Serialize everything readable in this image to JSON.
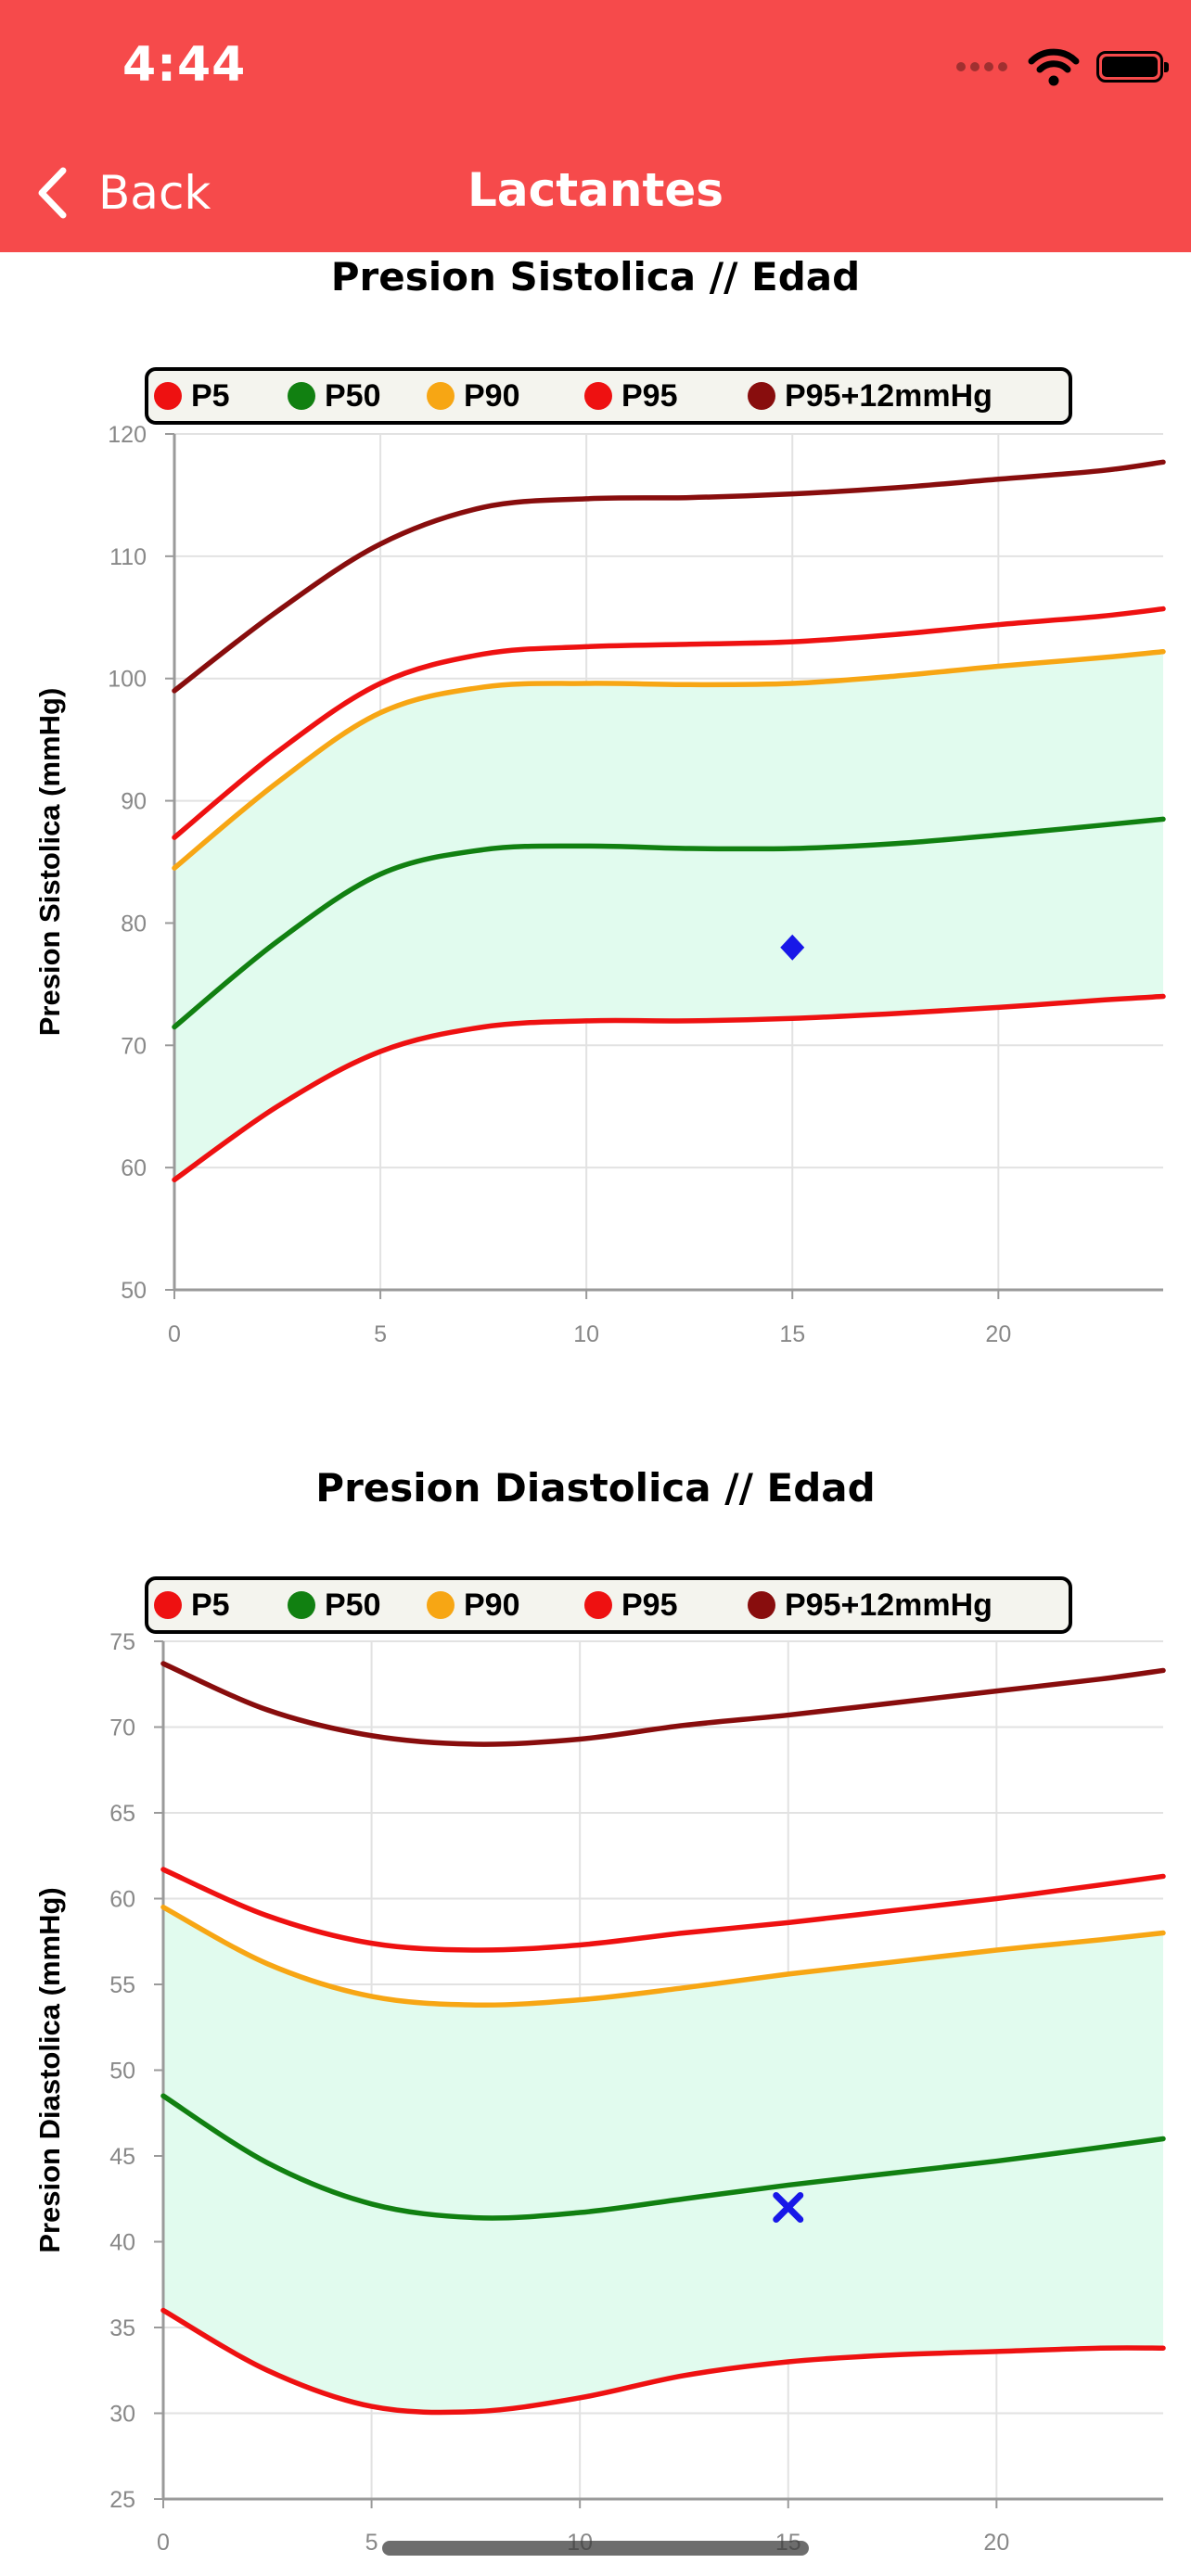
{
  "status_bar": {
    "time": "4:44"
  },
  "nav": {
    "back_label": "Back",
    "title": "Lactantes"
  },
  "legend": [
    {
      "label": "P5",
      "color": "#ee1111"
    },
    {
      "label": "P50",
      "color": "#118011"
    },
    {
      "label": "P90",
      "color": "#f7a614"
    },
    {
      "label": "P95",
      "color": "#ee1111"
    },
    {
      "label": "P95+12mmHg",
      "color": "#880d0d"
    }
  ],
  "chart_data": [
    {
      "type": "line",
      "title": "Presion Sistolica // Edad",
      "ylabel": "Presion Sistolica (mmHg)",
      "xlabel": "",
      "xlim": [
        0,
        24
      ],
      "ylim": [
        50,
        120
      ],
      "x_ticks": [
        0,
        5,
        10,
        15,
        20
      ],
      "y_ticks": [
        50,
        60,
        70,
        80,
        90,
        100,
        110,
        120
      ],
      "grid": true,
      "legend_position": "top",
      "band": {
        "between": [
          "P5",
          "P90"
        ],
        "color": "#e1fbee"
      },
      "series": [
        {
          "name": "P5",
          "color": "#ee1111",
          "x": [
            0,
            2.5,
            5,
            7.5,
            10,
            12.5,
            15,
            17.5,
            20,
            22.5,
            24
          ],
          "y": [
            59,
            65,
            69.5,
            71.5,
            72,
            72,
            72.2,
            72.6,
            73.1,
            73.7,
            74
          ]
        },
        {
          "name": "P50",
          "color": "#118011",
          "x": [
            0,
            2.5,
            5,
            7.5,
            10,
            12.5,
            15,
            17.5,
            20,
            22.5,
            24
          ],
          "y": [
            71.5,
            78.5,
            84,
            86,
            86.3,
            86.1,
            86.1,
            86.5,
            87.2,
            88,
            88.5
          ]
        },
        {
          "name": "P90",
          "color": "#f7a614",
          "x": [
            0,
            2.5,
            5,
            7.5,
            10,
            12.5,
            15,
            17.5,
            20,
            22.5,
            24
          ],
          "y": [
            84.5,
            91.5,
            97.2,
            99.3,
            99.6,
            99.5,
            99.6,
            100.2,
            101,
            101.7,
            102.2
          ]
        },
        {
          "name": "P95",
          "color": "#ee1111",
          "x": [
            0,
            2.5,
            5,
            7.5,
            10,
            12.5,
            15,
            17.5,
            20,
            22.5,
            24
          ],
          "y": [
            87,
            94,
            99.6,
            102,
            102.6,
            102.8,
            103,
            103.6,
            104.4,
            105.1,
            105.7
          ]
        },
        {
          "name": "P95+12mmHg",
          "color": "#880d0d",
          "x": [
            0,
            2.5,
            5,
            7.5,
            10,
            12.5,
            15,
            17.5,
            20,
            22.5,
            24
          ],
          "y": [
            99,
            105.5,
            111,
            114,
            114.7,
            114.8,
            115.1,
            115.6,
            116.3,
            117,
            117.7
          ]
        }
      ],
      "points": [
        {
          "x": 15,
          "y": 78,
          "marker": "diamond",
          "color": "#1818e8"
        }
      ]
    },
    {
      "type": "line",
      "title": "Presion Diastolica // Edad",
      "ylabel": "Presion Diastolica (mmHg)",
      "xlabel": "",
      "xlim": [
        0,
        24
      ],
      "ylim": [
        25,
        75
      ],
      "x_ticks": [
        0,
        5,
        10,
        15,
        20
      ],
      "y_ticks": [
        25,
        30,
        35,
        40,
        45,
        50,
        55,
        60,
        65,
        70,
        75
      ],
      "grid": true,
      "legend_position": "top",
      "band": {
        "between": [
          "P5",
          "P90"
        ],
        "color": "#e1fbee"
      },
      "series": [
        {
          "name": "P5",
          "color": "#ee1111",
          "x": [
            0,
            2.5,
            5,
            7.5,
            10,
            12.5,
            15,
            17.5,
            20,
            22.5,
            24
          ],
          "y": [
            36,
            32.5,
            30.4,
            30.1,
            30.9,
            32.2,
            33,
            33.4,
            33.6,
            33.8,
            33.8
          ]
        },
        {
          "name": "P50",
          "color": "#118011",
          "x": [
            0,
            2.5,
            5,
            7.5,
            10,
            12.5,
            15,
            17.5,
            20,
            22.5,
            24
          ],
          "y": [
            48.5,
            44.6,
            42.2,
            41.4,
            41.7,
            42.5,
            43.3,
            44,
            44.7,
            45.5,
            46
          ]
        },
        {
          "name": "P90",
          "color": "#f7a614",
          "x": [
            0,
            2.5,
            5,
            7.5,
            10,
            12.5,
            15,
            17.5,
            20,
            22.5,
            24
          ],
          "y": [
            59.5,
            56.2,
            54.3,
            53.8,
            54.1,
            54.8,
            55.6,
            56.3,
            57,
            57.6,
            58
          ]
        },
        {
          "name": "P95",
          "color": "#ee1111",
          "x": [
            0,
            2.5,
            5,
            7.5,
            10,
            12.5,
            15,
            17.5,
            20,
            22.5,
            24
          ],
          "y": [
            61.7,
            59,
            57.4,
            57,
            57.3,
            58,
            58.6,
            59.3,
            60,
            60.8,
            61.3
          ]
        },
        {
          "name": "P95+12mmHg",
          "color": "#880d0d",
          "x": [
            0,
            2.5,
            5,
            7.5,
            10,
            12.5,
            15,
            17.5,
            20,
            22.5,
            24
          ],
          "y": [
            73.7,
            71,
            69.5,
            69,
            69.3,
            70.1,
            70.7,
            71.4,
            72.1,
            72.8,
            73.3
          ]
        }
      ],
      "points": [
        {
          "x": 15,
          "y": 42,
          "marker": "cross",
          "color": "#1818e8"
        }
      ]
    }
  ]
}
